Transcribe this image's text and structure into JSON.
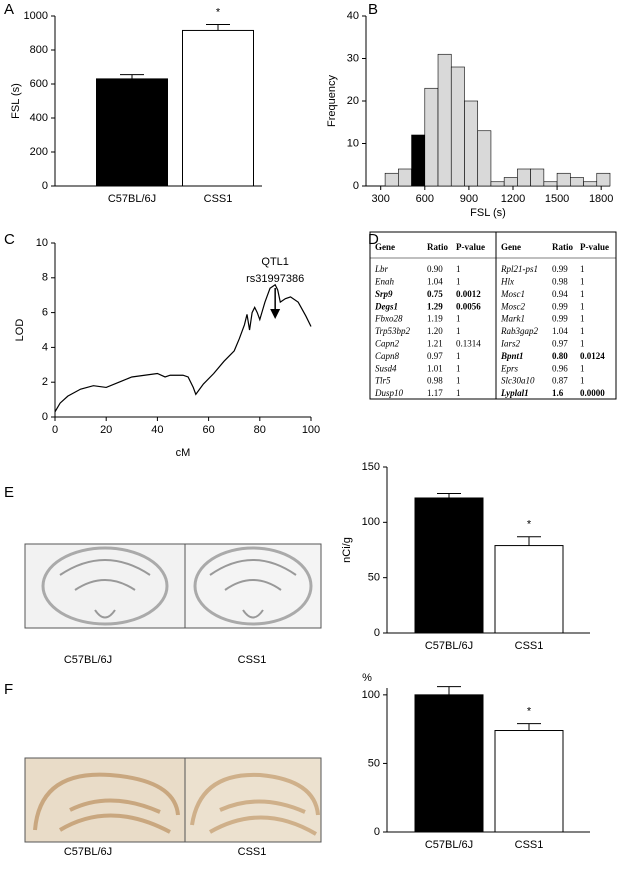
{
  "chart_data": [
    {
      "type": "bar",
      "label": "A",
      "ylabel": "FSL (s)",
      "categories": [
        "C57BL/6J",
        "CSS1"
      ],
      "values": [
        630,
        915
      ],
      "errors": [
        25,
        35
      ],
      "colors": [
        "#000000",
        "#ffffff"
      ],
      "annotation": "*",
      "ylim": [
        0,
        1000
      ],
      "yticks": [
        0,
        200,
        400,
        600,
        800,
        1000
      ]
    },
    {
      "type": "histogram",
      "label": "B",
      "xlabel": "FSL (s)",
      "ylabel": "Frequency",
      "bins": [
        330,
        420,
        510,
        600,
        690,
        780,
        870,
        960,
        1050,
        1140,
        1230,
        1320,
        1410,
        1500,
        1590,
        1680,
        1770,
        1860
      ],
      "counts": [
        3,
        4,
        12,
        23,
        31,
        28,
        20,
        13,
        1,
        2,
        4,
        4,
        1,
        3,
        2,
        1,
        3
      ],
      "colors": [
        "#d9d9d9",
        "#d9d9d9",
        "#000000",
        "#d9d9d9",
        "#d9d9d9",
        "#d9d9d9",
        "#d9d9d9",
        "#d9d9d9",
        "#d9d9d9",
        "#d9d9d9",
        "#d9d9d9",
        "#d9d9d9",
        "#d9d9d9",
        "#d9d9d9",
        "#d9d9d9",
        "#d9d9d9",
        "#d9d9d9"
      ],
      "xlim": [
        200,
        1860
      ],
      "xticks": [
        300,
        600,
        900,
        1200,
        1500,
        1800
      ],
      "ylim": [
        0,
        40
      ],
      "yticks": [
        0,
        10,
        20,
        30,
        40
      ]
    },
    {
      "type": "line",
      "label": "C",
      "xlabel": "cM",
      "ylabel": "LOD",
      "annotation": [
        "QTL1",
        "rs31997386"
      ],
      "x": [
        0,
        2,
        5,
        10,
        15,
        20,
        25,
        30,
        35,
        40,
        43,
        45,
        50,
        52,
        54,
        55,
        58,
        62,
        66,
        70,
        72,
        74,
        75,
        76,
        77,
        78,
        79,
        80,
        81,
        82,
        83,
        84,
        85,
        86,
        87,
        88,
        90,
        92,
        95,
        98,
        100
      ],
      "values": [
        0.3,
        0.8,
        1.2,
        1.6,
        1.8,
        1.7,
        2.0,
        2.3,
        2.4,
        2.5,
        2.3,
        2.4,
        2.4,
        2.3,
        1.7,
        1.3,
        1.9,
        2.5,
        3.2,
        3.8,
        4.5,
        5.3,
        5.9,
        5.0,
        6.0,
        6.3,
        6.0,
        5.6,
        6.1,
        6.6,
        7.0,
        7.4,
        7.5,
        7.6,
        7.3,
        6.6,
        6.8,
        6.9,
        6.6,
        5.8,
        5.2
      ],
      "marker_x": 86,
      "color": "#000000",
      "xlim": [
        0,
        100
      ],
      "xticks": [
        0,
        20,
        40,
        60,
        80,
        100
      ],
      "ylim": [
        0,
        10
      ],
      "yticks": [
        0,
        2,
        4,
        6,
        8,
        10
      ]
    },
    {
      "type": "bar",
      "label": "E",
      "ylabel": "nCi/g",
      "categories": [
        "C57BL/6J",
        "CSS1"
      ],
      "values": [
        122,
        79
      ],
      "errors": [
        4,
        8
      ],
      "colors": [
        "#000000",
        "#ffffff"
      ],
      "annotation": "*",
      "ylim": [
        0,
        150
      ],
      "yticks": [
        0,
        50,
        100,
        150
      ]
    },
    {
      "type": "bar",
      "label": "F",
      "ylabel": "%",
      "categories": [
        "C57BL/6J",
        "CSS1"
      ],
      "values": [
        100,
        74
      ],
      "errors": [
        6,
        5
      ],
      "colors": [
        "#000000",
        "#ffffff"
      ],
      "annotation": "*",
      "ylim": [
        0,
        105
      ],
      "yticks": [
        0,
        50,
        100
      ]
    }
  ],
  "table": {
    "label": "D",
    "header": [
      "Gene",
      "Ratio",
      "P-value",
      "Gene",
      "Ratio",
      "P-value"
    ],
    "rows": [
      [
        "Lbr",
        "0.90",
        "1",
        "Rpl21-ps1",
        "0.99",
        "1"
      ],
      [
        "Enah",
        "1.04",
        "1",
        "Hlx",
        "0.98",
        "1"
      ],
      [
        "Srp9",
        "0.75",
        "0.0012",
        "Mosc1",
        "0.94",
        "1"
      ],
      [
        "Degs1",
        "1.29",
        "0.0056",
        "Mosc2",
        "0.99",
        "1"
      ],
      [
        "Fbxo28",
        "1.19",
        "1",
        "Mark1",
        "0.99",
        "1"
      ],
      [
        "Trp53bp2",
        "1.20",
        "1",
        "Rab3gap2",
        "1.04",
        "1"
      ],
      [
        "Capn2",
        "1.21",
        "0.1314",
        "Iars2",
        "0.97",
        "1"
      ],
      [
        "Capn8",
        "0.97",
        "1",
        "Bpnt1",
        "0.80",
        "0.0124"
      ],
      [
        "Susd4",
        "1.01",
        "1",
        "Eprs",
        "0.96",
        "1"
      ],
      [
        "Tlr5",
        "0.98",
        "1",
        "Slc30a10",
        "0.87",
        "1"
      ],
      [
        "Dusp10",
        "1.17",
        "1",
        "Lyplal1",
        "1.6",
        "0.0000"
      ]
    ],
    "bold": {
      "left": [
        2,
        3
      ],
      "right": [
        7,
        10
      ]
    }
  },
  "images": [
    {
      "captions": [
        "C57BL/6J",
        "CSS1"
      ]
    },
    {
      "captions": [
        "C57BL/6J",
        "CSS1"
      ]
    }
  ]
}
